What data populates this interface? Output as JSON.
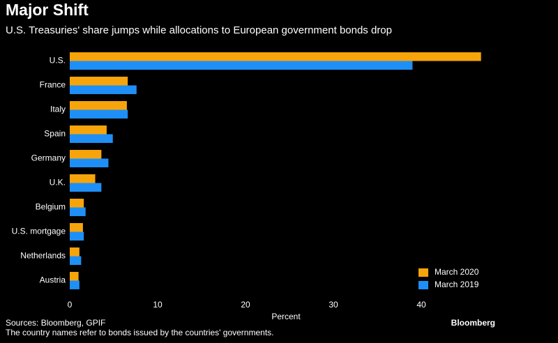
{
  "chart_data": {
    "type": "hbar",
    "title": "Major Shift",
    "subtitle": "U.S. Treasuries' share jumps while allocations to European government bonds drop",
    "xlabel": "Percent",
    "source": "Sources: Bloomberg, GPIF",
    "note": "The country names refer to bonds issued by the countries' governments.",
    "brand": "Bloomberg",
    "categories": [
      "U.S.",
      "France",
      "Italy",
      "Spain",
      "Germany",
      "U.K.",
      "Belgium",
      "U.S. mortgage",
      "Netherlands",
      "Austria"
    ],
    "series": [
      {
        "name": "March 2020",
        "color": "#f7a40b",
        "values": [
          46.8,
          6.6,
          6.5,
          4.2,
          3.6,
          2.9,
          1.6,
          1.5,
          1.1,
          1.0
        ]
      },
      {
        "name": "March 2019",
        "color": "#1e8ff6",
        "values": [
          39.0,
          7.6,
          6.6,
          4.9,
          4.4,
          3.6,
          1.8,
          1.6,
          1.3,
          1.1
        ]
      }
    ],
    "xlim": [
      0,
      47.5
    ],
    "xticks": [
      0,
      10,
      20,
      30,
      40
    ],
    "grid": false,
    "legend": "lower right"
  }
}
